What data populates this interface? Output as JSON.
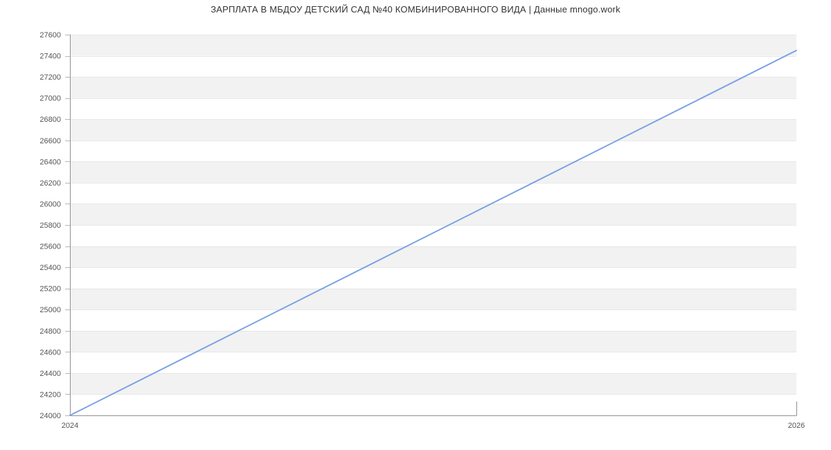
{
  "title": "ЗАРПЛАТА В МБДОУ ДЕТСКИЙ САД №40 КОМБИНИРОВАННОГО ВИДА | Данные mnogo.work",
  "colors": {
    "background": "#ffffff",
    "title_text": "#333333",
    "tick_label_text": "#555555",
    "axis_line": "#909090",
    "tick_mark": "#b5b5b5",
    "gridline": "#e7e7e7",
    "band_fill": "#f2f2f2",
    "series_line": "#7aa1e6"
  },
  "chart_data": {
    "type": "line",
    "title": "ЗАРПЛАТА В МБДОУ ДЕТСКИЙ САД №40 КОМБИНИРОВАННОГО ВИДА | Данные mnogo.work",
    "xlim": [
      2024,
      2026
    ],
    "ylim": [
      24000,
      27600
    ],
    "x_tick_positions": [
      2024,
      2026
    ],
    "x_tick_labels": [
      "2024",
      "2026"
    ],
    "y_ticks": [
      24000,
      24200,
      24400,
      24600,
      24800,
      25000,
      25200,
      25400,
      25600,
      25800,
      26000,
      26200,
      26400,
      26600,
      26800,
      27000,
      27200,
      27400,
      27600
    ],
    "xlabel": "",
    "ylabel": "",
    "grid": true,
    "alternating_horizontal_bands": true,
    "legend": "none",
    "series": [
      {
        "interpolation": "linear",
        "points": [
          [
            2024,
            24000
          ],
          [
            2026,
            27450
          ]
        ]
      }
    ]
  }
}
